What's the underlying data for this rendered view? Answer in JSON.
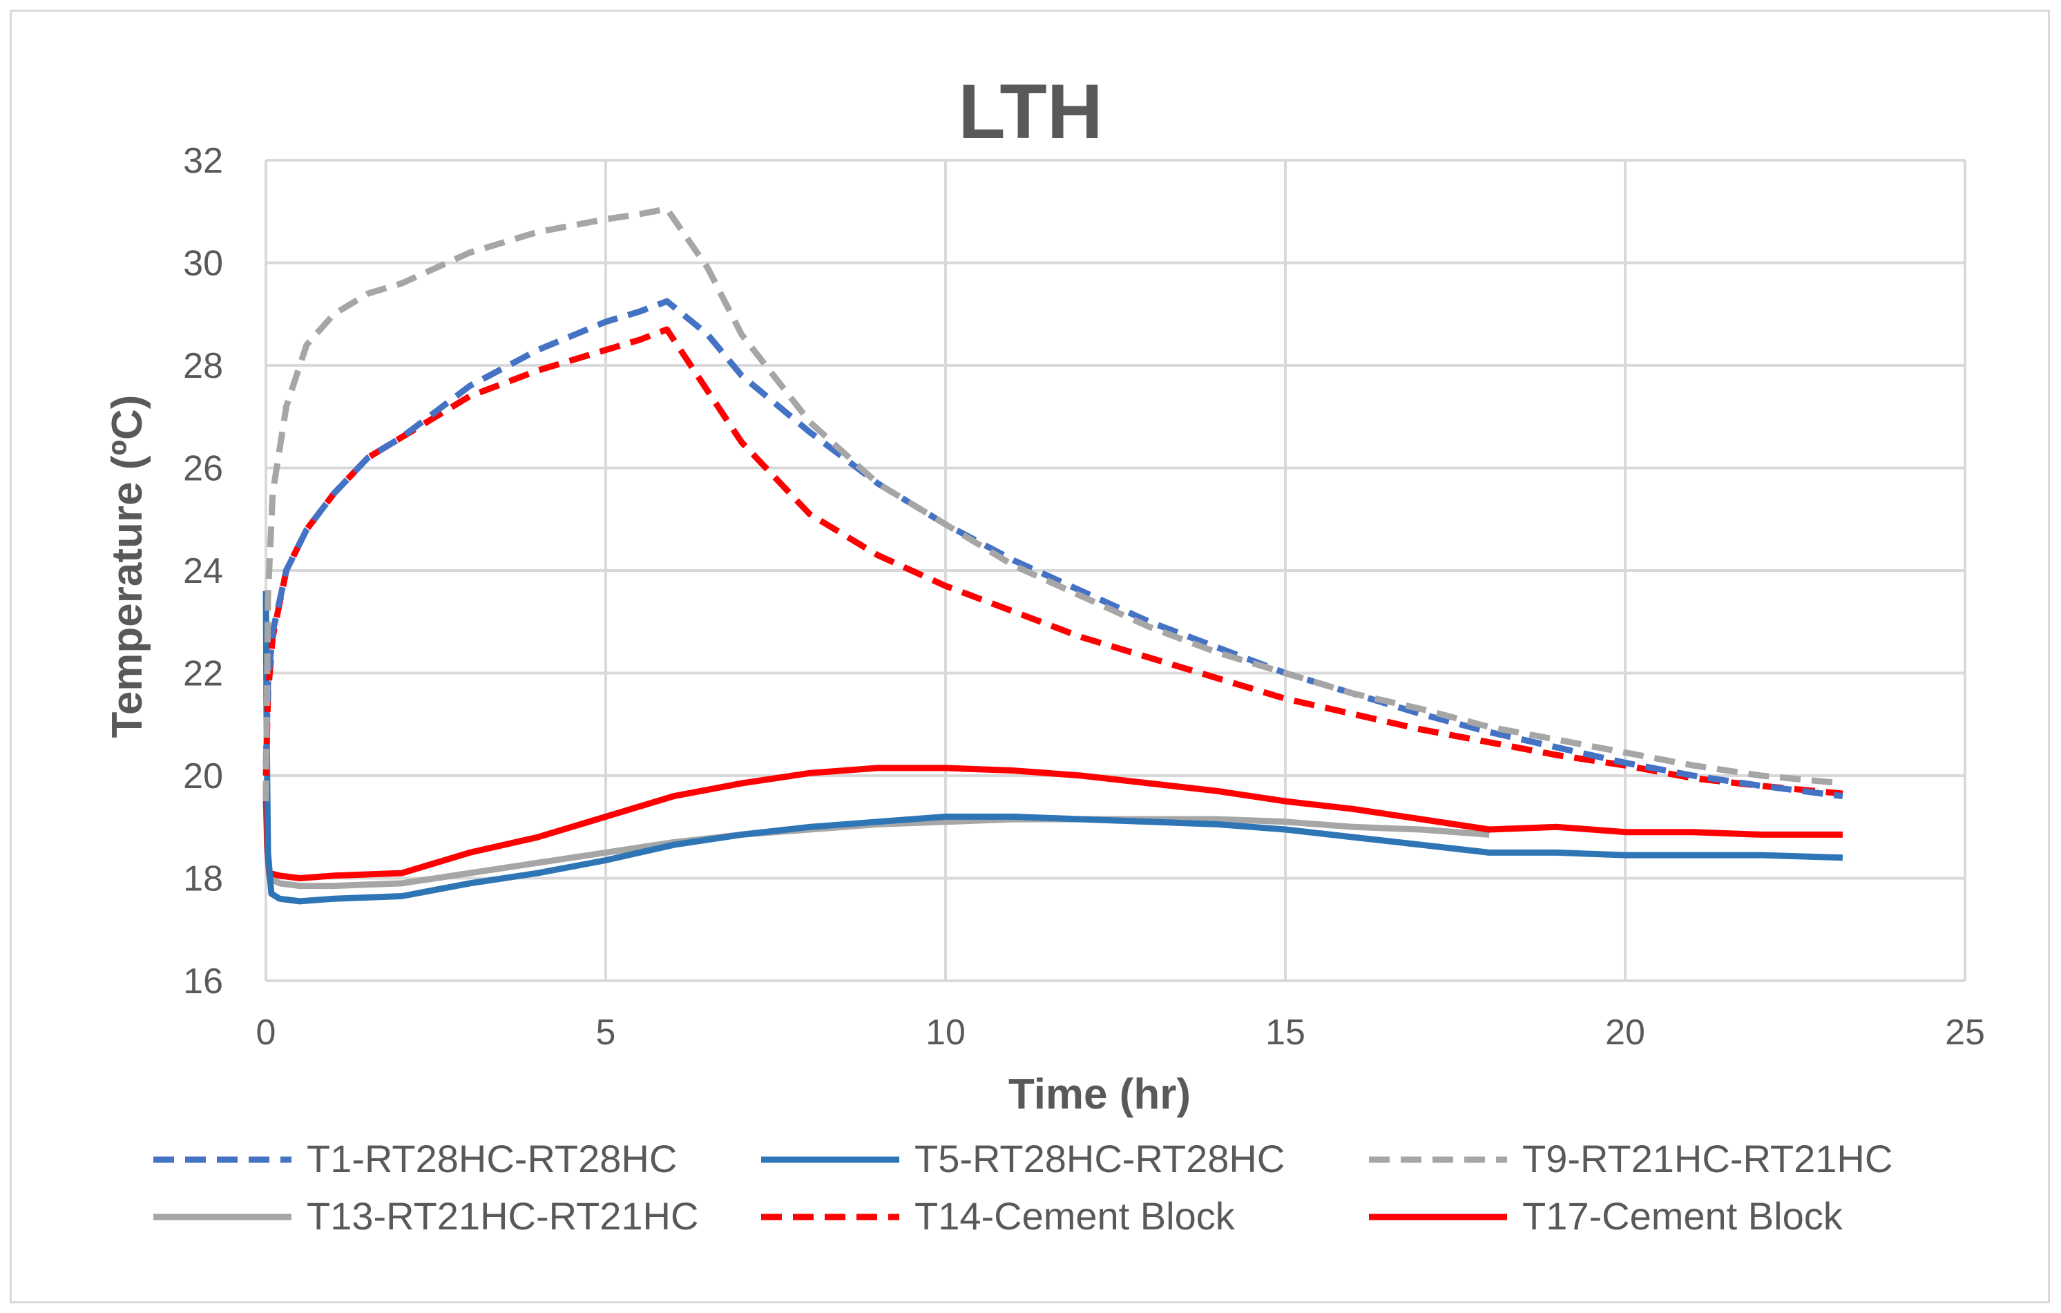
{
  "chart_data": {
    "type": "line",
    "title": "LTH",
    "xlabel": "Time (hr)",
    "ylabel": "Temperature (ºC)",
    "xlim": [
      0,
      25
    ],
    "ylim": [
      16,
      32
    ],
    "xticks": [
      0,
      5,
      10,
      15,
      20,
      25
    ],
    "yticks": [
      16,
      18,
      20,
      22,
      24,
      26,
      28,
      30,
      32
    ],
    "grid": true,
    "legend_position": "bottom",
    "series": [
      {
        "name": "T1-RT28HC-RT28HC",
        "color": "#4472c4",
        "dash": "dashed",
        "x": [
          0,
          0.03,
          0.1,
          0.3,
          0.6,
          1,
          1.5,
          2,
          3,
          4,
          5,
          5.5,
          5.9,
          6.5,
          7,
          8,
          9,
          10,
          11,
          12,
          13,
          14,
          15,
          16,
          17,
          18,
          19,
          20,
          21,
          22,
          23.2
        ],
        "y": [
          20.2,
          21.8,
          22.8,
          24.0,
          24.8,
          25.5,
          26.2,
          26.6,
          27.6,
          28.3,
          28.85,
          29.05,
          29.25,
          28.6,
          27.8,
          26.7,
          25.7,
          24.9,
          24.2,
          23.6,
          23.0,
          22.5,
          22.0,
          21.6,
          21.2,
          20.85,
          20.55,
          20.25,
          20.0,
          19.8,
          19.6
        ]
      },
      {
        "name": "T5-RT28HC-RT28HC",
        "color": "#2e75b6",
        "dash": "solid",
        "x": [
          0,
          0.01,
          0.03,
          0.08,
          0.2,
          0.5,
          1,
          2,
          3,
          4,
          5,
          6,
          7,
          8,
          9,
          10,
          11,
          12,
          13,
          14,
          15,
          16,
          17,
          18,
          19,
          20,
          21,
          22,
          23.2
        ],
        "y": [
          23.6,
          21.0,
          18.5,
          17.7,
          17.6,
          17.55,
          17.6,
          17.65,
          17.9,
          18.1,
          18.35,
          18.65,
          18.85,
          19.0,
          19.1,
          19.2,
          19.2,
          19.15,
          19.1,
          19.05,
          18.95,
          18.8,
          18.65,
          18.5,
          18.5,
          18.45,
          18.45,
          18.45,
          18.4
        ]
      },
      {
        "name": "T9-RT21HC-RT21HC",
        "color": "#a6a6a6",
        "dash": "dashed",
        "x": [
          0,
          0.03,
          0.1,
          0.3,
          0.6,
          1,
          1.5,
          2,
          3,
          4,
          5,
          5.5,
          5.9,
          6.5,
          7,
          8,
          9,
          10,
          11,
          12,
          13,
          14,
          15,
          16,
          17,
          18,
          19,
          20,
          21,
          22,
          23.2
        ],
        "y": [
          19.5,
          23.5,
          25.5,
          27.2,
          28.4,
          29.0,
          29.4,
          29.6,
          30.2,
          30.6,
          30.85,
          30.95,
          31.05,
          29.9,
          28.6,
          26.9,
          25.7,
          24.9,
          24.1,
          23.5,
          22.9,
          22.4,
          22.0,
          21.6,
          21.3,
          20.95,
          20.7,
          20.45,
          20.2,
          20.0,
          19.85
        ]
      },
      {
        "name": "T13-RT21HC-RT21HC",
        "color": "#a6a6a6",
        "dash": "solid",
        "x": [
          0,
          0.02,
          0.05,
          0.2,
          0.5,
          1,
          2,
          3,
          4,
          5,
          6,
          7,
          8,
          9,
          10,
          11,
          12,
          13,
          14,
          15,
          16,
          17,
          18
        ],
        "y": [
          19.5,
          18.5,
          18.0,
          17.9,
          17.85,
          17.85,
          17.9,
          18.1,
          18.3,
          18.5,
          18.7,
          18.85,
          18.95,
          19.05,
          19.1,
          19.15,
          19.15,
          19.15,
          19.15,
          19.1,
          19.0,
          18.95,
          18.85
        ]
      },
      {
        "name": "T14-Cement Block",
        "color": "#ff0000",
        "dash": "dashed",
        "x": [
          0,
          0.03,
          0.1,
          0.3,
          0.6,
          1,
          1.5,
          2,
          3,
          4,
          5,
          5.5,
          5.9,
          6.5,
          7,
          8,
          9,
          10,
          11,
          12,
          13,
          14,
          15,
          16,
          17,
          18,
          19,
          20,
          21,
          22,
          23.2
        ],
        "y": [
          20.0,
          21.6,
          22.7,
          24.0,
          24.8,
          25.5,
          26.2,
          26.6,
          27.4,
          27.9,
          28.3,
          28.5,
          28.7,
          27.5,
          26.5,
          25.1,
          24.3,
          23.7,
          23.2,
          22.7,
          22.3,
          21.9,
          21.5,
          21.2,
          20.9,
          20.65,
          20.4,
          20.2,
          19.95,
          19.8,
          19.65
        ]
      },
      {
        "name": "T17-Cement Block",
        "color": "#ff0000",
        "dash": "solid",
        "x": [
          0,
          0.02,
          0.05,
          0.2,
          0.5,
          1,
          2,
          3,
          4,
          5,
          6,
          7,
          8,
          9,
          10,
          11,
          12,
          13,
          14,
          15,
          16,
          17,
          18,
          19,
          20,
          21,
          22,
          23.2
        ],
        "y": [
          19.8,
          18.6,
          18.1,
          18.05,
          18.0,
          18.05,
          18.1,
          18.5,
          18.8,
          19.2,
          19.6,
          19.85,
          20.05,
          20.15,
          20.15,
          20.1,
          20.0,
          19.85,
          19.7,
          19.5,
          19.35,
          19.15,
          18.95,
          19.0,
          18.9,
          18.9,
          18.85,
          18.85
        ]
      }
    ]
  }
}
